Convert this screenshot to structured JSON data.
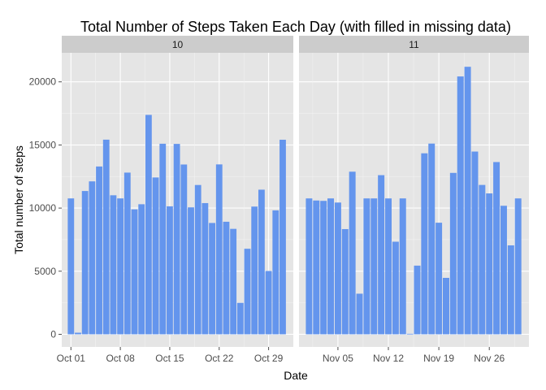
{
  "chart_data": {
    "type": "bar",
    "title": "Total Number of Steps Taken Each Day (with filled in missing data)",
    "xlabel": "Date",
    "ylabel": "Total number of steps",
    "ylim": [
      -1000,
      22300
    ],
    "y_ticks": [
      0,
      5000,
      10000,
      15000,
      20000
    ],
    "bar_color": "#6495ED",
    "panel_bg": "#E5E5E5",
    "strip_bg": "#CCCCCC",
    "grid": true,
    "facets": [
      {
        "label": "10",
        "x_ticks": [
          {
            "day": 1,
            "label": "Oct 01"
          },
          {
            "day": 8,
            "label": "Oct 08"
          },
          {
            "day": 15,
            "label": "Oct 15"
          },
          {
            "day": 22,
            "label": "Oct 22"
          },
          {
            "day": 29,
            "label": "Oct 29"
          }
        ],
        "series": [
          {
            "date": "2012-10-01",
            "steps": 10766
          },
          {
            "date": "2012-10-02",
            "steps": 126
          },
          {
            "date": "2012-10-03",
            "steps": 11352
          },
          {
            "date": "2012-10-04",
            "steps": 12116
          },
          {
            "date": "2012-10-05",
            "steps": 13294
          },
          {
            "date": "2012-10-06",
            "steps": 15420
          },
          {
            "date": "2012-10-07",
            "steps": 11015
          },
          {
            "date": "2012-10-08",
            "steps": 10766
          },
          {
            "date": "2012-10-09",
            "steps": 12811
          },
          {
            "date": "2012-10-10",
            "steps": 9900
          },
          {
            "date": "2012-10-11",
            "steps": 10304
          },
          {
            "date": "2012-10-12",
            "steps": 17382
          },
          {
            "date": "2012-10-13",
            "steps": 12426
          },
          {
            "date": "2012-10-14",
            "steps": 15098
          },
          {
            "date": "2012-10-15",
            "steps": 10139
          },
          {
            "date": "2012-10-16",
            "steps": 15084
          },
          {
            "date": "2012-10-17",
            "steps": 13452
          },
          {
            "date": "2012-10-18",
            "steps": 10056
          },
          {
            "date": "2012-10-19",
            "steps": 11829
          },
          {
            "date": "2012-10-20",
            "steps": 10395
          },
          {
            "date": "2012-10-21",
            "steps": 8821
          },
          {
            "date": "2012-10-22",
            "steps": 13460
          },
          {
            "date": "2012-10-23",
            "steps": 8918
          },
          {
            "date": "2012-10-24",
            "steps": 8355
          },
          {
            "date": "2012-10-25",
            "steps": 2492
          },
          {
            "date": "2012-10-26",
            "steps": 6778
          },
          {
            "date": "2012-10-27",
            "steps": 10119
          },
          {
            "date": "2012-10-28",
            "steps": 11458
          },
          {
            "date": "2012-10-29",
            "steps": 5018
          },
          {
            "date": "2012-10-30",
            "steps": 9819
          },
          {
            "date": "2012-10-31",
            "steps": 15414
          }
        ]
      },
      {
        "label": "11",
        "x_ticks": [
          {
            "day": 5,
            "label": "Nov 05"
          },
          {
            "day": 12,
            "label": "Nov 12"
          },
          {
            "day": 19,
            "label": "Nov 19"
          },
          {
            "day": 26,
            "label": "Nov 26"
          }
        ],
        "series": [
          {
            "date": "2012-11-01",
            "steps": 10766
          },
          {
            "date": "2012-11-02",
            "steps": 10600
          },
          {
            "date": "2012-11-03",
            "steps": 10571
          },
          {
            "date": "2012-11-04",
            "steps": 10766
          },
          {
            "date": "2012-11-05",
            "steps": 10439
          },
          {
            "date": "2012-11-06",
            "steps": 8334
          },
          {
            "date": "2012-11-07",
            "steps": 12883
          },
          {
            "date": "2012-11-08",
            "steps": 3219
          },
          {
            "date": "2012-11-09",
            "steps": 10766
          },
          {
            "date": "2012-11-10",
            "steps": 10766
          },
          {
            "date": "2012-11-11",
            "steps": 12608
          },
          {
            "date": "2012-11-12",
            "steps": 10765
          },
          {
            "date": "2012-11-13",
            "steps": 7336
          },
          {
            "date": "2012-11-14",
            "steps": 10766
          },
          {
            "date": "2012-11-15",
            "steps": 41
          },
          {
            "date": "2012-11-16",
            "steps": 5441
          },
          {
            "date": "2012-11-17",
            "steps": 14339
          },
          {
            "date": "2012-11-18",
            "steps": 15110
          },
          {
            "date": "2012-11-19",
            "steps": 8841
          },
          {
            "date": "2012-11-20",
            "steps": 4472
          },
          {
            "date": "2012-11-21",
            "steps": 12787
          },
          {
            "date": "2012-11-22",
            "steps": 20427
          },
          {
            "date": "2012-11-23",
            "steps": 21194
          },
          {
            "date": "2012-11-24",
            "steps": 14478
          },
          {
            "date": "2012-11-25",
            "steps": 11834
          },
          {
            "date": "2012-11-26",
            "steps": 11162
          },
          {
            "date": "2012-11-27",
            "steps": 13646
          },
          {
            "date": "2012-11-28",
            "steps": 10183
          },
          {
            "date": "2012-11-29",
            "steps": 7047
          },
          {
            "date": "2012-11-30",
            "steps": 10766
          }
        ]
      }
    ]
  }
}
